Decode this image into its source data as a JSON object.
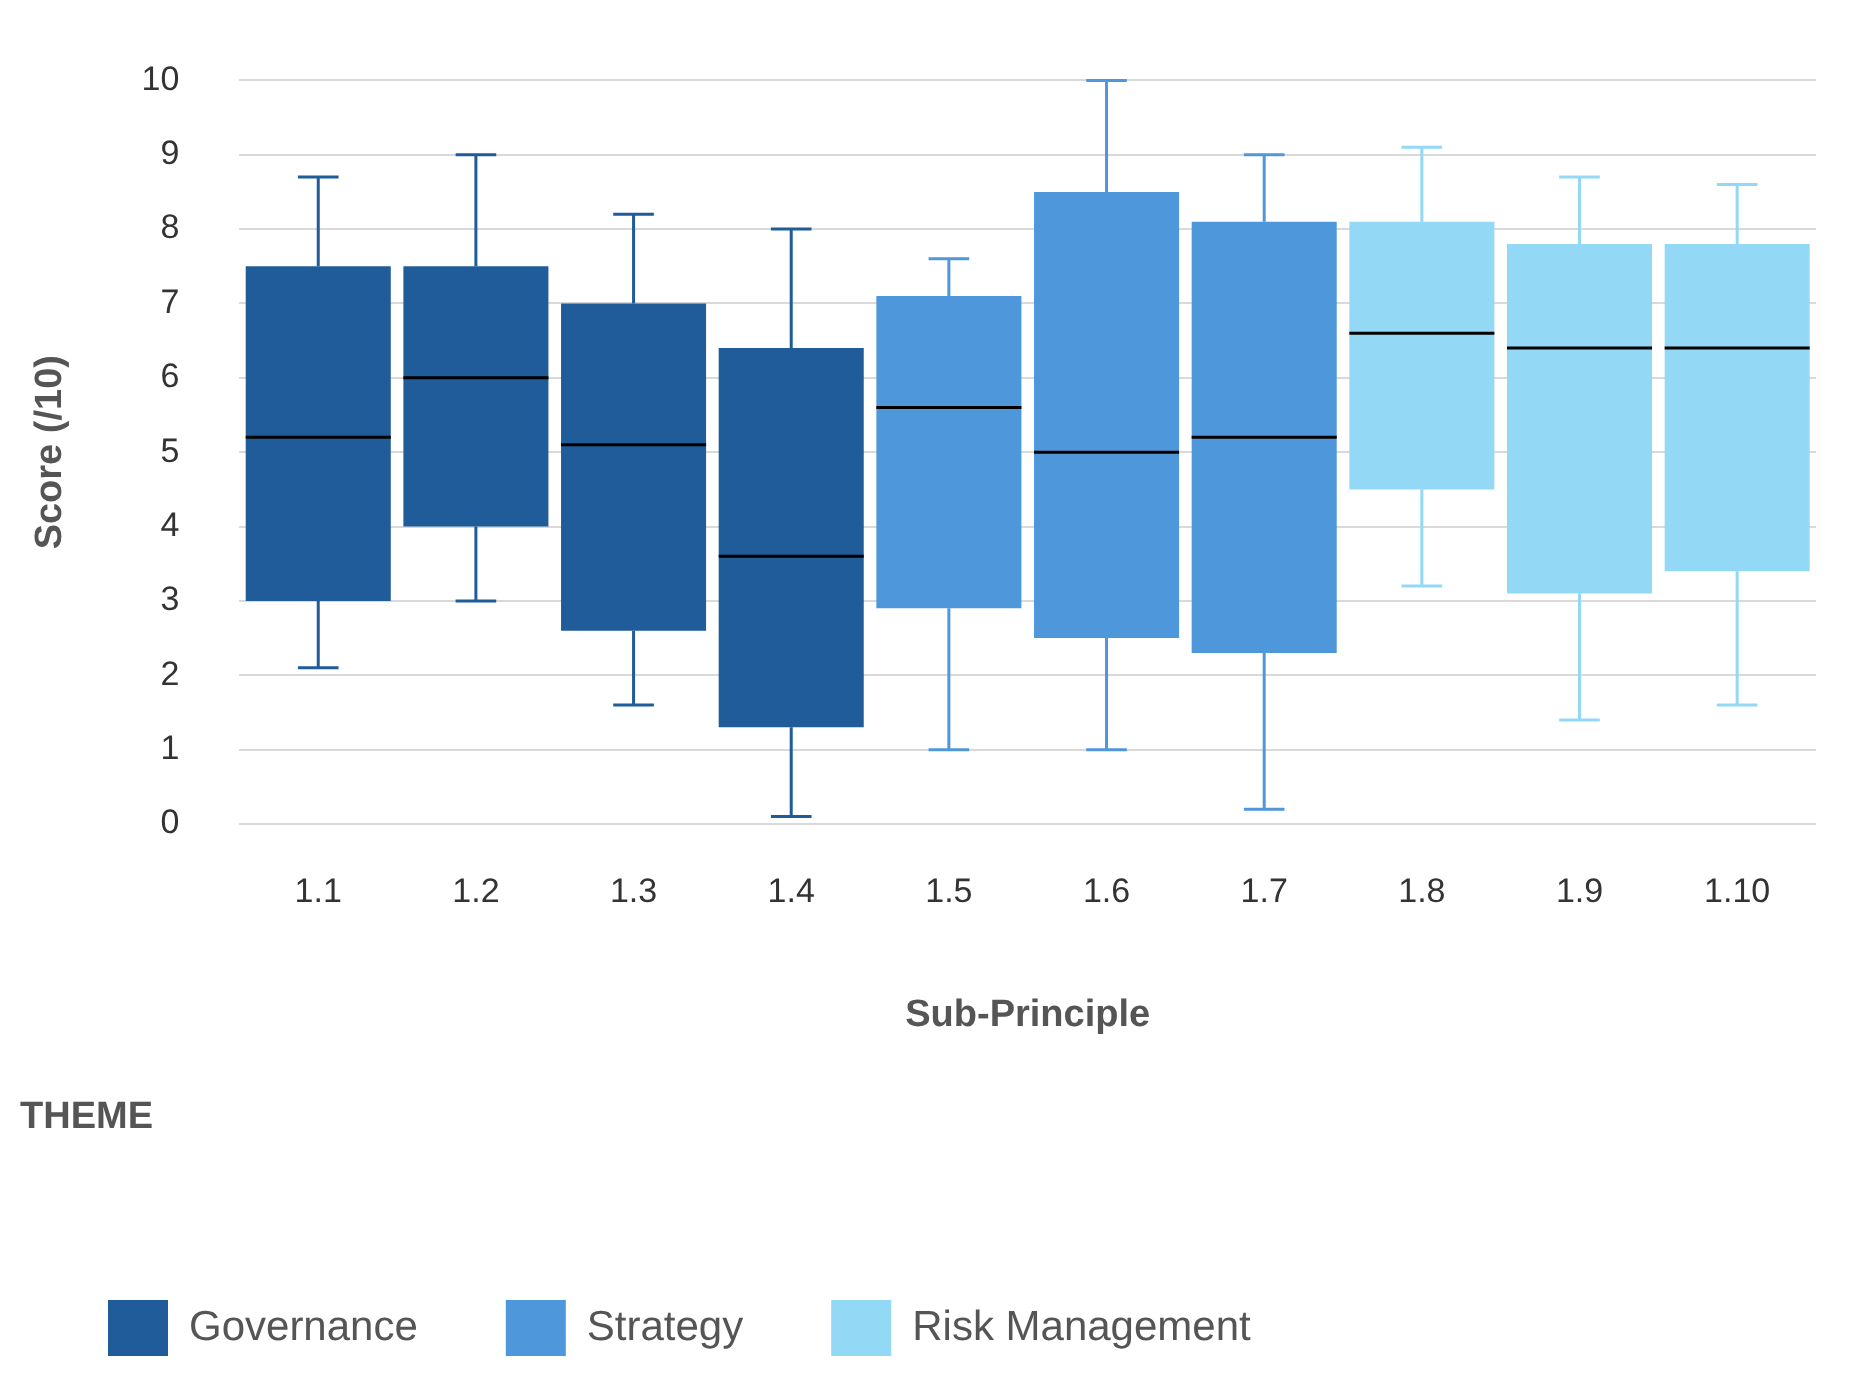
{
  "chart_data": {
    "type": "box",
    "xlabel": "Sub-Principle",
    "ylabel": "Score (/10)",
    "legend_title": "THEME",
    "legend": "bottom",
    "grid": "y",
    "categories": [
      "1.1",
      "1.2",
      "1.3",
      "1.4",
      "1.5",
      "1.6",
      "1.7",
      "1.8",
      "1.9",
      "1.10"
    ],
    "ylim": [
      0,
      10
    ],
    "yticks": [
      0,
      1,
      2,
      3,
      4,
      5,
      6,
      7,
      8,
      9,
      10
    ],
    "series": [
      {
        "name": "Governance",
        "color": "#1f5c99",
        "boxes": [
          {
            "low": 2.1,
            "q1": 3.0,
            "median": 5.2,
            "q3": 7.5,
            "high": 8.7
          },
          {
            "low": 3.0,
            "q1": 4.0,
            "median": 6.0,
            "q3": 7.5,
            "high": 9.0
          },
          {
            "low": 1.6,
            "q1": 2.6,
            "median": 5.1,
            "q3": 7.0,
            "high": 8.2
          },
          {
            "low": 0.1,
            "q1": 1.3,
            "median": 3.6,
            "q3": 6.4,
            "high": 8.0
          },
          null,
          null,
          null,
          null,
          null,
          null
        ]
      },
      {
        "name": "Strategy",
        "color": "#4f97db",
        "boxes": [
          null,
          null,
          null,
          null,
          {
            "low": 1.0,
            "q1": 2.9,
            "median": 5.6,
            "q3": 7.1,
            "high": 7.6
          },
          {
            "low": 1.0,
            "q1": 2.5,
            "median": 5.0,
            "q3": 8.5,
            "high": 10.0
          },
          {
            "low": 0.2,
            "q1": 2.3,
            "median": 5.2,
            "q3": 8.1,
            "high": 9.0
          },
          null,
          null,
          null
        ]
      },
      {
        "name": "Risk Management",
        "color": "#93d8f5",
        "boxes": [
          null,
          null,
          null,
          null,
          null,
          null,
          null,
          {
            "low": 3.2,
            "q1": 4.5,
            "median": 6.6,
            "q3": 8.1,
            "high": 9.1
          },
          {
            "low": 1.4,
            "q1": 3.1,
            "median": 6.4,
            "q3": 7.8,
            "high": 8.7
          },
          {
            "low": 1.6,
            "q1": 3.4,
            "median": 6.4,
            "q3": 7.8,
            "high": 8.6
          }
        ]
      }
    ]
  }
}
